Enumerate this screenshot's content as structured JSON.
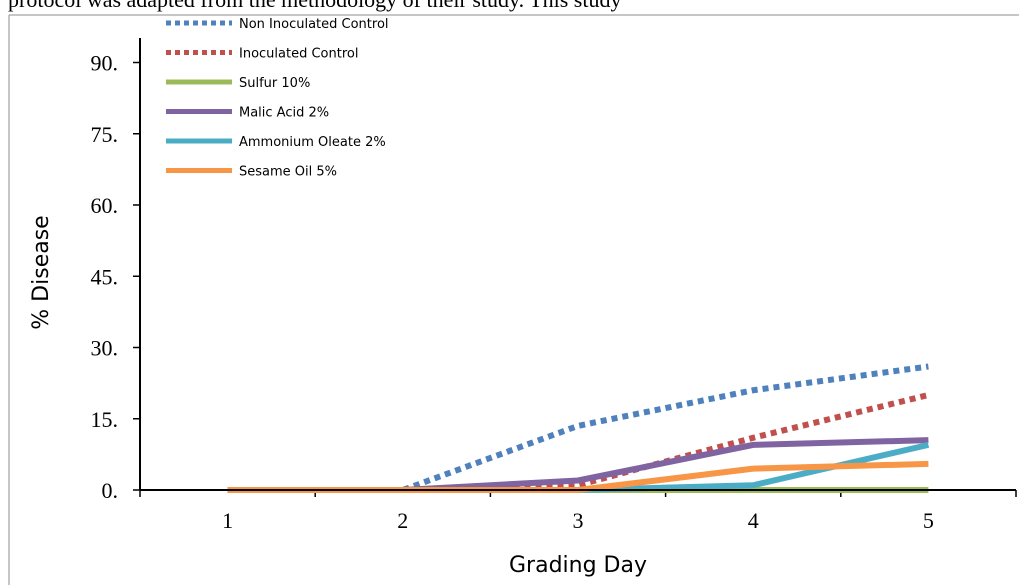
{
  "header_text": "protocol was adapted from the methodology of their study. This study",
  "chart_data": {
    "type": "line",
    "xlabel": "Grading Day",
    "ylabel": "% Disease",
    "categories": [
      "1",
      "2",
      "3",
      "4",
      "5"
    ],
    "x": [
      1,
      2,
      3,
      4,
      5
    ],
    "xlim": [
      0.5,
      5.5
    ],
    "ylim": [
      0,
      100
    ],
    "y_ticks": [
      0,
      15,
      30,
      45,
      60,
      75,
      90
    ],
    "y_tick_labels": [
      "0.",
      "15.",
      "30.",
      "45.",
      "60.",
      "75.",
      "90."
    ],
    "grid": false,
    "legend_position": "top-left",
    "series": [
      {
        "name": "Non Inoculated Control",
        "color": "#4f81bd",
        "style": "dotted",
        "values": [
          0,
          0,
          13.5,
          21,
          26
        ]
      },
      {
        "name": "Inoculated Control",
        "color": "#c0504d",
        "style": "dotted",
        "values": [
          0,
          0,
          1,
          11,
          20
        ]
      },
      {
        "name": "Sulfur 10%",
        "color": "#9bbb59",
        "style": "solid",
        "values": [
          0,
          0,
          0,
          0,
          0
        ]
      },
      {
        "name": "Malic Acid 2%",
        "color": "#8064a2",
        "style": "solid",
        "values": [
          0,
          0,
          2,
          9.5,
          10.5
        ]
      },
      {
        "name": "Ammonium Oleate 2%",
        "color": "#4bacc6",
        "style": "solid",
        "values": [
          0,
          0,
          0,
          1,
          9.5
        ]
      },
      {
        "name": "Sesame Oil 5%",
        "color": "#f79646",
        "style": "solid",
        "values": [
          0,
          0,
          0,
          4.5,
          5.5
        ]
      }
    ]
  }
}
